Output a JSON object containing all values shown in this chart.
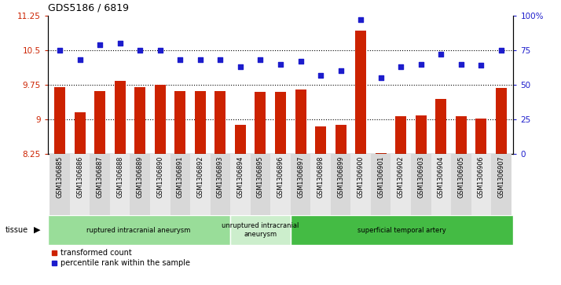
{
  "title": "GDS5186 / 6819",
  "samples": [
    "GSM1306885",
    "GSM1306886",
    "GSM1306887",
    "GSM1306888",
    "GSM1306889",
    "GSM1306890",
    "GSM1306891",
    "GSM1306892",
    "GSM1306893",
    "GSM1306894",
    "GSM1306895",
    "GSM1306896",
    "GSM1306897",
    "GSM1306898",
    "GSM1306899",
    "GSM1306900",
    "GSM1306901",
    "GSM1306902",
    "GSM1306903",
    "GSM1306904",
    "GSM1306905",
    "GSM1306906",
    "GSM1306907"
  ],
  "transformed_count": [
    9.7,
    9.15,
    9.62,
    9.83,
    9.7,
    9.75,
    9.62,
    9.62,
    9.62,
    8.88,
    9.6,
    9.6,
    9.65,
    8.85,
    8.88,
    10.92,
    8.27,
    9.07,
    9.08,
    9.45,
    9.07,
    9.02,
    9.68
  ],
  "percentile_rank": [
    75,
    68,
    79,
    80,
    75,
    75,
    68,
    68,
    68,
    63,
    68,
    65,
    67,
    57,
    60,
    97,
    55,
    63,
    65,
    72,
    65,
    64,
    75
  ],
  "ylim_left": [
    8.25,
    11.25
  ],
  "ylim_right": [
    0,
    100
  ],
  "yticks_left": [
    8.25,
    9.0,
    9.75,
    10.5,
    11.25
  ],
  "yticks_right": [
    0,
    25,
    50,
    75,
    100
  ],
  "ytick_labels_left": [
    "8.25",
    "9",
    "9.75",
    "10.5",
    "11.25"
  ],
  "ytick_labels_right": [
    "0",
    "25",
    "50",
    "75",
    "100%"
  ],
  "hlines": [
    9.0,
    9.75,
    10.5
  ],
  "bar_color": "#CC2200",
  "dot_color": "#1C1CCC",
  "background_plot": "#FFFFFF",
  "groups": [
    {
      "label": "ruptured intracranial aneurysm",
      "start": 0,
      "end": 9,
      "color": "#99DD99"
    },
    {
      "label": "unruptured intracranial\naneurysm",
      "start": 9,
      "end": 12,
      "color": "#CCEECC"
    },
    {
      "label": "superficial temporal artery",
      "start": 12,
      "end": 23,
      "color": "#44BB44"
    }
  ],
  "legend_bar_label": "transformed count",
  "legend_dot_label": "percentile rank within the sample",
  "tissue_label": "tissue"
}
